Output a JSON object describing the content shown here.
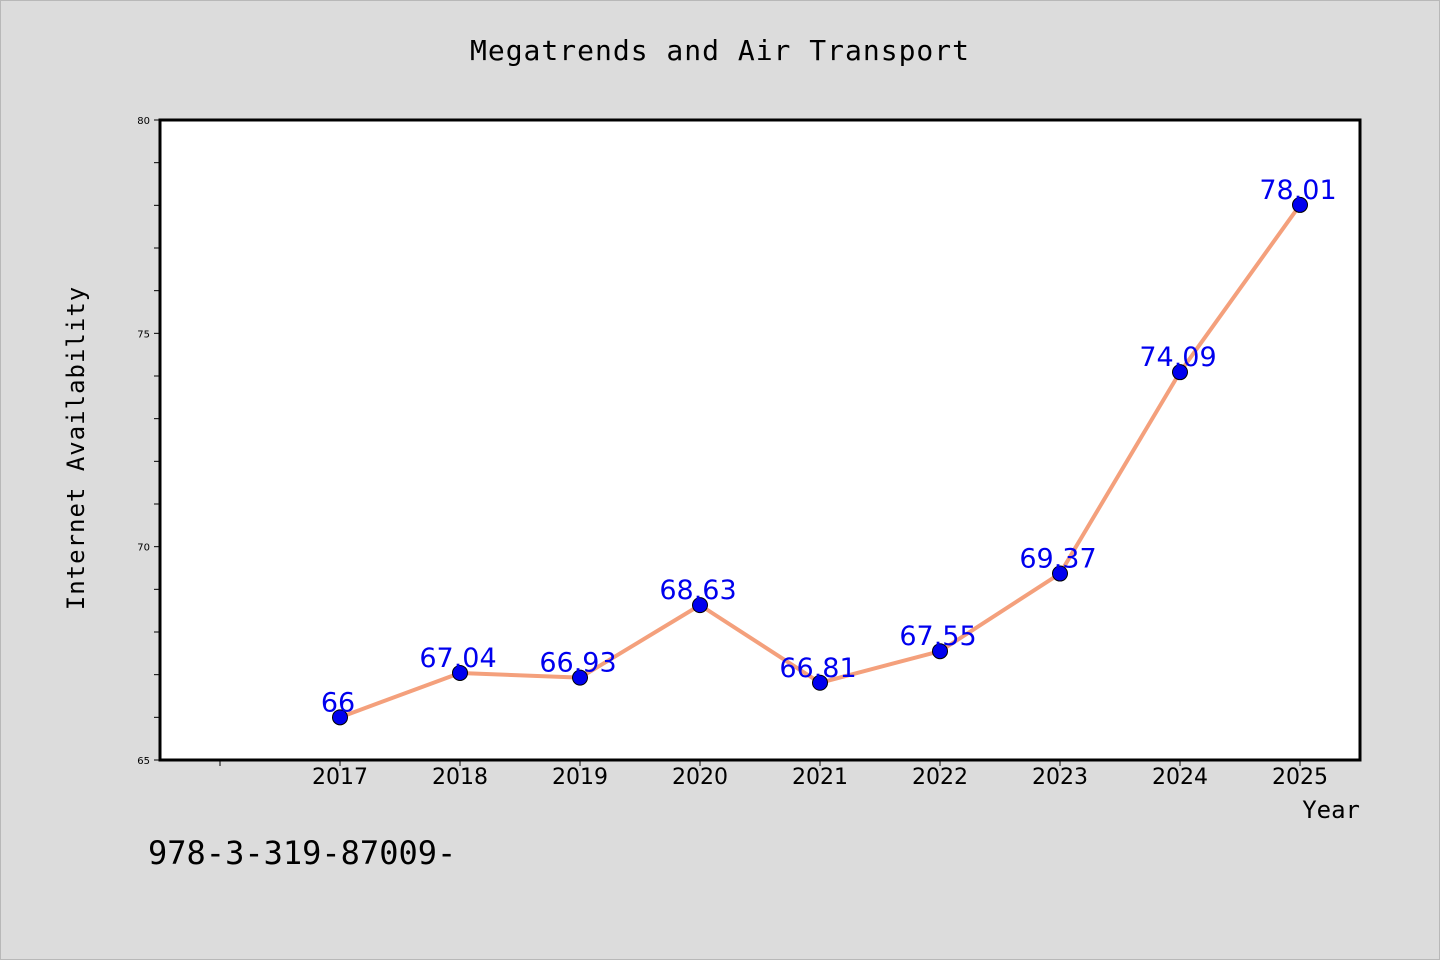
{
  "chart_data": {
    "type": "line",
    "title": "Megatrends and Air Transport",
    "xlabel": "Year",
    "ylabel": "Internet Availability",
    "categories": [
      "2017",
      "2018",
      "2019",
      "2020",
      "2021",
      "2022",
      "2023",
      "2024",
      "2025"
    ],
    "series": [
      {
        "values": [
          66,
          67.04,
          66.93,
          68.63,
          66.81,
          67.55,
          69.37,
          74.09,
          78.01
        ],
        "data_labels": [
          "66",
          "67.04",
          "66.93",
          "68.63",
          "66.81",
          "67.55",
          "69.37",
          "74.09",
          "78.01"
        ],
        "line_color": "#f4a07c",
        "marker_color": "#0000ee"
      }
    ],
    "ylim": [
      65,
      80
    ],
    "yticks": [
      "65",
      "70",
      "75",
      "80"
    ],
    "grid": false,
    "legend": "none"
  },
  "footer": {
    "isbn": "978-3-319-87009-"
  },
  "colors": {
    "background": "#dcdcdc",
    "plot_background": "#ffffff",
    "label_color": "#0000ee"
  }
}
